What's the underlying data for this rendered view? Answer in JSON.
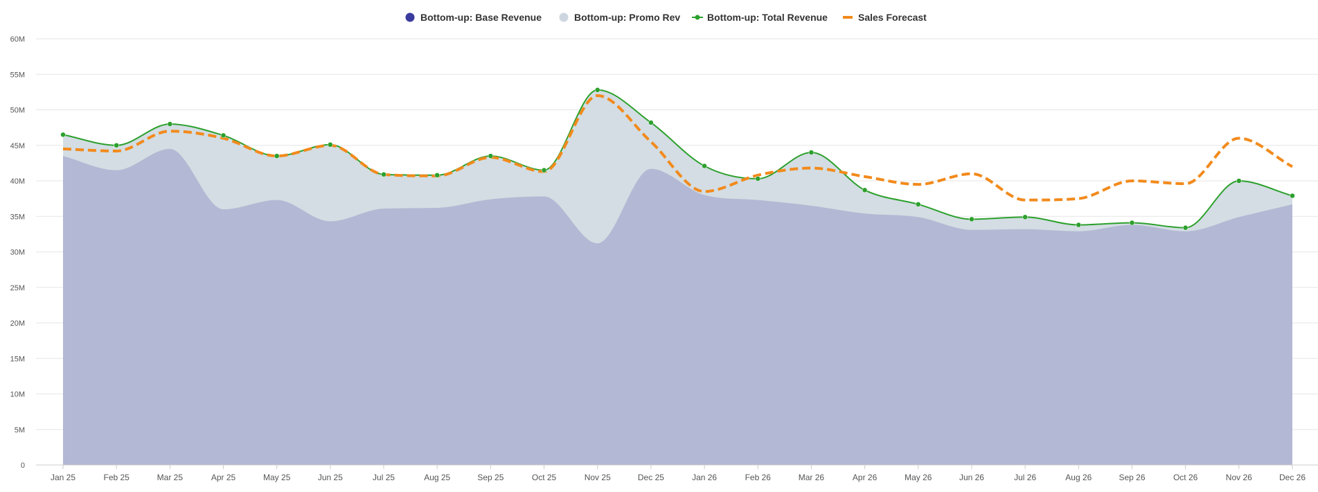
{
  "chart_data": {
    "type": "area",
    "title": "",
    "xlabel": "",
    "ylabel": "",
    "categories": [
      "Jan 25",
      "Feb 25",
      "Mar 25",
      "Apr 25",
      "May 25",
      "Jun 25",
      "Jul 25",
      "Aug 25",
      "Sep 25",
      "Oct 25",
      "Nov 25",
      "Dec 25",
      "Jan 26",
      "Feb 26",
      "Mar 26",
      "Apr 26",
      "May 26",
      "Jun 26",
      "Jul 26",
      "Aug 26",
      "Sep 26",
      "Oct 26",
      "Nov 26",
      "Dec 26"
    ],
    "ylim": [
      0,
      60000000
    ],
    "y_ticks": [
      {
        "value": 0,
        "label": "0"
      },
      {
        "value": 5000000,
        "label": "5M"
      },
      {
        "value": 10000000,
        "label": "10M"
      },
      {
        "value": 15000000,
        "label": "15M"
      },
      {
        "value": 20000000,
        "label": "20M"
      },
      {
        "value": 25000000,
        "label": "25M"
      },
      {
        "value": 30000000,
        "label": "30M"
      },
      {
        "value": 35000000,
        "label": "35M"
      },
      {
        "value": 40000000,
        "label": "40M"
      },
      {
        "value": 45000000,
        "label": "45M"
      },
      {
        "value": 50000000,
        "label": "50M"
      },
      {
        "value": 55000000,
        "label": "55M"
      },
      {
        "value": 60000000,
        "label": "60M"
      }
    ],
    "grid": true,
    "legend_position": "top-center",
    "series": [
      {
        "name": "Bottom-up: Base Revenue",
        "kind": "area",
        "color": "#b3b8d4",
        "legend_color": "#3b3a9e",
        "values": [
          43.5,
          41.5,
          44.5,
          36.0,
          37.3,
          34.3,
          36.1,
          36.2,
          37.4,
          37.8,
          31.2,
          41.7,
          38.0,
          37.3,
          36.5,
          35.4,
          34.9,
          33.1,
          33.2,
          32.9,
          33.8,
          32.9,
          34.9,
          36.7
        ]
      },
      {
        "name": "Bottom-up: Promo Rev",
        "kind": "area",
        "color": "#d3dde3",
        "legend_color": "#cdd6e0",
        "values": [
          3.0,
          3.5,
          3.5,
          10.4,
          6.2,
          10.8,
          4.8,
          4.6,
          6.1,
          3.7,
          21.6,
          6.5,
          4.1,
          3.0,
          7.5,
          3.3,
          1.8,
          1.5,
          1.7,
          0.9,
          0.3,
          0.5,
          5.1,
          1.2
        ]
      },
      {
        "name": "Bottom-up: Total Revenue",
        "kind": "line",
        "color": "#2ca02c",
        "values": [
          46.5,
          45.0,
          48.0,
          46.4,
          43.5,
          45.1,
          40.9,
          40.8,
          43.5,
          41.5,
          52.8,
          48.2,
          42.1,
          40.3,
          44.0,
          38.7,
          36.7,
          34.6,
          34.9,
          33.8,
          34.1,
          33.4,
          40.0,
          37.9
        ]
      },
      {
        "name": "Sales Forecast",
        "kind": "dashed-line",
        "color": "#f28a1c",
        "values": [
          44.5,
          44.2,
          47.0,
          46.0,
          43.5,
          45.0,
          40.9,
          40.7,
          43.3,
          41.3,
          52.0,
          45.5,
          38.5,
          40.8,
          41.8,
          40.6,
          39.5,
          41.0,
          37.3,
          37.5,
          40.0,
          39.6,
          46.0,
          42.0
        ]
      }
    ]
  }
}
